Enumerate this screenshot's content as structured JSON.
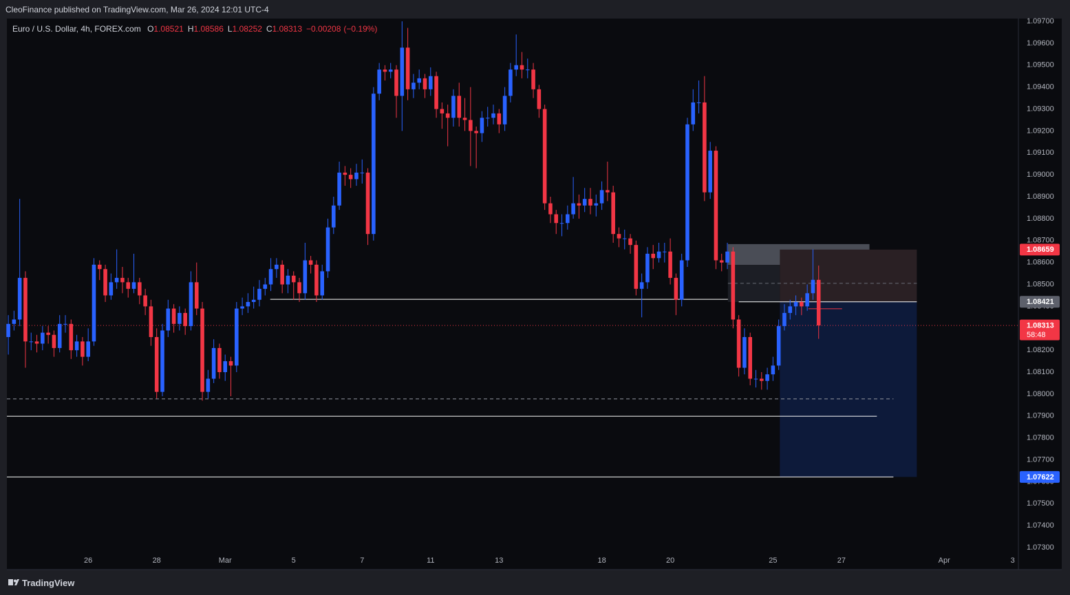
{
  "header": "CleoFinance published on TradingView.com, Mar 26, 2024 12:01 UTC-4",
  "footer": "TradingView",
  "chart_data": {
    "type": "candlestick",
    "title": "Euro / U.S. Dollar, 4h, FOREX.com",
    "ohlc_legend": [
      {
        "label": "O",
        "value": 1.08521
      },
      {
        "label": "H",
        "value": 1.08586
      },
      {
        "label": "L",
        "value": 1.08252
      },
      {
        "label": "C",
        "value": 1.08313
      }
    ],
    "change": {
      "value": -0.00208,
      "label": "−0.00208"
    },
    "change_percent": {
      "value": -0.19,
      "label": "(−0.19%)"
    },
    "legend_color": "#f23645",
    "up_color": "#2962ff",
    "down_color": "#f23645",
    "open": [
      1.0826,
      1.0832,
      1.0834,
      1.0853,
      1.0824,
      1.0824,
      1.0823,
      1.0828,
      1.0827,
      1.0821,
      1.0832,
      1.0832,
      1.082,
      1.0824,
      1.0817,
      1.0824,
      1.0859,
      1.0857,
      1.0845,
      1.0851,
      1.0853,
      1.0851,
      1.0848,
      1.0851,
      1.0845,
      1.084,
      1.0826,
      1.0801,
      1.0829,
      1.0839,
      1.0832,
      1.0837,
      1.0831,
      1.0851,
      1.0839,
      1.0801,
      1.0807,
      1.0821,
      1.081,
      1.0815,
      1.0813,
      1.0839,
      1.084,
      1.0842,
      1.0843,
      1.0848,
      1.085,
      1.0857,
      1.0859,
      1.085,
      1.0854,
      1.0851,
      1.0846,
      1.0861,
      1.0859,
      1.0845,
      1.0856,
      1.0876,
      1.0886,
      1.0901,
      1.09,
      1.0898,
      1.0901,
      1.0901,
      1.0873,
      1.0937,
      1.0948,
      1.0947,
      1.0948,
      1.0936,
      1.0958,
      1.0939,
      1.0942,
      1.0944,
      1.0939,
      1.0945,
      1.093,
      1.0928,
      1.0926,
      1.0936,
      1.0926,
      1.0925,
      1.092,
      1.0919,
      1.0926,
      1.0926,
      1.0928,
      1.0923,
      1.0936,
      1.0948,
      1.095,
      1.0948,
      1.0948,
      1.0939,
      1.093,
      1.0887,
      1.0882,
      1.0878,
      1.0878,
      1.0882,
      1.0887,
      1.0886,
      1.0889,
      1.0886,
      1.0887,
      1.0893,
      1.0892,
      1.0873,
      1.0871,
      1.0871,
      1.0868,
      1.0848,
      1.0851,
      1.0864,
      1.0862,
      1.0865,
      1.0865,
      1.0853,
      1.0843,
      1.0861,
      1.0923,
      1.0933,
      1.0933,
      1.0892,
      1.0911,
      1.0861,
      1.086,
      1.0865,
      1.0834,
      1.0812,
      1.0826,
      1.0807,
      1.0807,
      1.0806,
      1.0809,
      1.0813,
      1.0831,
      1.0837,
      1.084,
      1.0842,
      1.084,
      1.0846,
      1.08521
    ],
    "high": [
      1.0836,
      1.0838,
      1.0889,
      1.0856,
      1.0828,
      1.0827,
      1.0831,
      1.0831,
      1.0829,
      1.0836,
      1.0836,
      1.0834,
      1.0827,
      1.0826,
      1.083,
      1.0862,
      1.0861,
      1.0859,
      1.0855,
      1.0866,
      1.0858,
      1.0853,
      1.0864,
      1.0853,
      1.0848,
      1.0843,
      1.083,
      1.0832,
      1.0843,
      1.0841,
      1.084,
      1.0839,
      1.0856,
      1.086,
      1.0842,
      1.0811,
      1.0825,
      1.0823,
      1.0818,
      1.0817,
      1.0842,
      1.0844,
      1.0846,
      1.0849,
      1.0852,
      1.0853,
      1.0862,
      1.0862,
      1.0861,
      1.0857,
      1.0856,
      1.0853,
      1.0869,
      1.0863,
      1.0861,
      1.0859,
      1.088,
      1.089,
      1.0906,
      1.0904,
      1.0903,
      1.0905,
      1.0907,
      1.0903,
      1.094,
      1.0951,
      1.095,
      1.0951,
      1.095,
      1.097,
      1.0967,
      1.0946,
      1.0948,
      1.0946,
      1.0949,
      1.0947,
      1.0933,
      1.0932,
      1.0939,
      1.0942,
      1.0935,
      1.094,
      1.0922,
      1.0929,
      1.0931,
      1.0932,
      1.093,
      1.094,
      1.0951,
      1.0964,
      1.0956,
      1.0953,
      1.0951,
      1.0941,
      1.0932,
      1.089,
      1.0884,
      1.0882,
      1.0886,
      1.0899,
      1.0891,
      1.0894,
      1.0894,
      1.0891,
      1.0897,
      1.0906,
      1.0895,
      1.0876,
      1.0875,
      1.0873,
      1.087,
      1.0855,
      1.0867,
      1.0868,
      1.0869,
      1.0869,
      1.0871,
      1.0855,
      1.0864,
      1.0926,
      1.0939,
      1.0943,
      1.0945,
      1.0915,
      1.0913,
      1.0864,
      1.0869,
      1.0867,
      1.0836,
      1.083,
      1.0828,
      1.0811,
      1.081,
      1.0812,
      1.0817,
      1.0834,
      1.0841,
      1.0843,
      1.0845,
      1.0844,
      1.085,
      1.0866,
      1.08586
    ],
    "low": [
      1.0818,
      1.0829,
      1.0831,
      1.0812,
      1.082,
      1.0819,
      1.082,
      1.0823,
      1.0817,
      1.0819,
      1.0828,
      1.0816,
      1.0817,
      1.0813,
      1.0815,
      1.0822,
      1.0852,
      1.0842,
      1.0843,
      1.0848,
      1.0846,
      1.0844,
      1.0846,
      1.0841,
      1.0836,
      1.0822,
      1.0798,
      1.0799,
      1.0826,
      1.0828,
      1.0829,
      1.0827,
      1.0829,
      1.0836,
      1.0797,
      1.0798,
      1.0805,
      1.0807,
      1.0806,
      1.0799,
      1.081,
      1.0836,
      1.0837,
      1.0839,
      1.084,
      1.0845,
      1.0847,
      1.0853,
      1.0846,
      1.0846,
      1.0843,
      1.0842,
      1.0843,
      1.0855,
      1.0842,
      1.0843,
      1.0853,
      1.0873,
      1.0884,
      1.0895,
      1.0894,
      1.0895,
      1.0896,
      1.0868,
      1.087,
      1.0934,
      1.0943,
      1.0944,
      1.0926,
      1.092,
      1.0934,
      1.0935,
      1.0939,
      1.0935,
      1.0936,
      1.0926,
      1.0921,
      1.0913,
      1.0922,
      1.0922,
      1.092,
      1.0904,
      1.0903,
      1.0915,
      1.0922,
      1.0923,
      1.0919,
      1.092,
      1.0933,
      1.0945,
      1.0944,
      1.0944,
      1.0935,
      1.0926,
      1.0884,
      1.0878,
      1.0873,
      1.0872,
      1.0875,
      1.088,
      1.088,
      1.0883,
      1.0882,
      1.0881,
      1.0884,
      1.0888,
      1.0869,
      1.0867,
      1.0866,
      1.0864,
      1.0845,
      1.0835,
      1.0848,
      1.0857,
      1.086,
      1.086,
      1.085,
      1.0836,
      1.084,
      1.0858,
      1.092,
      1.0928,
      1.0888,
      1.0889,
      1.0857,
      1.0856,
      1.0857,
      1.083,
      1.0808,
      1.0809,
      1.0804,
      1.0803,
      1.0802,
      1.0802,
      1.0806,
      1.0811,
      1.0829,
      1.0834,
      1.0836,
      1.0836,
      1.0838,
      1.0843,
      1.08252
    ],
    "close": [
      1.0832,
      1.0834,
      1.0853,
      1.0824,
      1.0824,
      1.0823,
      1.0828,
      1.0827,
      1.0821,
      1.0832,
      1.0832,
      1.082,
      1.0824,
      1.0817,
      1.0824,
      1.0859,
      1.0857,
      1.0845,
      1.0851,
      1.0853,
      1.0851,
      1.0848,
      1.0851,
      1.0845,
      1.084,
      1.0826,
      1.0801,
      1.0829,
      1.0839,
      1.0832,
      1.0837,
      1.0831,
      1.0851,
      1.0839,
      1.0801,
      1.0807,
      1.0821,
      1.081,
      1.0815,
      1.0813,
      1.0839,
      1.084,
      1.0842,
      1.0843,
      1.0848,
      1.085,
      1.0857,
      1.0859,
      1.085,
      1.0854,
      1.0851,
      1.0846,
      1.0861,
      1.0859,
      1.0845,
      1.0856,
      1.0876,
      1.0886,
      1.0901,
      1.09,
      1.0898,
      1.0901,
      1.0901,
      1.0873,
      1.0937,
      1.0948,
      1.0947,
      1.0948,
      1.0936,
      1.0958,
      1.0939,
      1.0942,
      1.0944,
      1.0939,
      1.0945,
      1.093,
      1.0928,
      1.0926,
      1.0936,
      1.0926,
      1.0925,
      1.092,
      1.0919,
      1.0926,
      1.0926,
      1.0928,
      1.0923,
      1.0936,
      1.0948,
      1.095,
      1.0948,
      1.0948,
      1.0939,
      1.093,
      1.0887,
      1.0882,
      1.0878,
      1.0878,
      1.0882,
      1.0887,
      1.0886,
      1.0889,
      1.0886,
      1.0887,
      1.0893,
      1.0892,
      1.0873,
      1.0871,
      1.0871,
      1.0868,
      1.0848,
      1.0851,
      1.0864,
      1.0862,
      1.0865,
      1.0865,
      1.0853,
      1.0843,
      1.0861,
      1.0923,
      1.0933,
      1.0933,
      1.0892,
      1.0911,
      1.0861,
      1.086,
      1.0865,
      1.0834,
      1.0812,
      1.0826,
      1.0807,
      1.0807,
      1.0806,
      1.0809,
      1.0813,
      1.0831,
      1.0837,
      1.084,
      1.0842,
      1.084,
      1.0846,
      1.08521,
      1.08313
    ],
    "xlim": [
      -0.25,
      177
    ],
    "xticks": [
      {
        "value": 14,
        "label": "26"
      },
      {
        "value": 26,
        "label": "28"
      },
      {
        "value": 38,
        "label": "Mar"
      },
      {
        "value": 50,
        "label": "5"
      },
      {
        "value": 62,
        "label": "7"
      },
      {
        "value": 74,
        "label": "11"
      },
      {
        "value": 86,
        "label": "13"
      },
      {
        "value": 104,
        "label": "18"
      },
      {
        "value": 116,
        "label": "20"
      },
      {
        "value": 134,
        "label": "25"
      },
      {
        "value": 146,
        "label": "27"
      },
      {
        "value": 164,
        "label": "Apr"
      },
      {
        "value": 176,
        "label": "3"
      }
    ],
    "ylim": [
      1.072,
      1.0971
    ],
    "yticks": [
      {
        "value": 1.073,
        "label": "1.07300"
      },
      {
        "value": 1.074,
        "label": "1.07400"
      },
      {
        "value": 1.075,
        "label": "1.07500"
      },
      {
        "value": 1.076,
        "label": "1.07600"
      },
      {
        "value": 1.077,
        "label": "1.07700"
      },
      {
        "value": 1.078,
        "label": "1.07800"
      },
      {
        "value": 1.079,
        "label": "1.07900"
      },
      {
        "value": 1.08,
        "label": "1.08000"
      },
      {
        "value": 1.081,
        "label": "1.08100"
      },
      {
        "value": 1.082,
        "label": "1.08200"
      },
      {
        "value": 1.083,
        "label": "1.08300"
      },
      {
        "value": 1.084,
        "label": "1.08400"
      },
      {
        "value": 1.085,
        "label": "1.08500"
      },
      {
        "value": 1.086,
        "label": "1.08600"
      },
      {
        "value": 1.087,
        "label": "1.08700"
      },
      {
        "value": 1.088,
        "label": "1.08800"
      },
      {
        "value": 1.089,
        "label": "1.08900"
      },
      {
        "value": 1.09,
        "label": "1.09000"
      },
      {
        "value": 1.091,
        "label": "1.09100"
      },
      {
        "value": 1.092,
        "label": "1.09200"
      },
      {
        "value": 1.093,
        "label": "1.09300"
      },
      {
        "value": 1.094,
        "label": "1.09400"
      },
      {
        "value": 1.095,
        "label": "1.09500"
      },
      {
        "value": 1.096,
        "label": "1.09600"
      },
      {
        "value": 1.097,
        "label": "1.09700"
      }
    ],
    "grid": false,
    "zones": [
      {
        "from": 126.1,
        "to": 150.9,
        "top": 1.08684,
        "bottom": 1.08589,
        "color": "#4a4d56"
      },
      {
        "from": 126.1,
        "to": 135.2,
        "top": 1.08589,
        "bottom": 1.0842,
        "color": "#1c1e25"
      },
      {
        "from": 135.2,
        "to": 159.2,
        "top": 1.08659,
        "bottom": 1.08421,
        "color": "#2a2024"
      },
      {
        "from": 135.2,
        "to": 159.2,
        "top": 1.08421,
        "bottom": 1.07622,
        "color": "#0d1a3a"
      }
    ],
    "levels": [
      {
        "value": 1.08432,
        "from": 45.9,
        "to": 126.1,
        "color": "#ffffff",
        "style": "solid"
      },
      {
        "value": 1.08421,
        "from": 128.0,
        "to": 159.2,
        "color": "#ffffff",
        "style": "solid"
      },
      {
        "value": 1.08505,
        "from": 126.1,
        "to": 159.2,
        "color": "#6a6d78",
        "style": "dashed"
      },
      {
        "value": 1.07978,
        "from": -0.25,
        "to": 155.1,
        "color": "#9598a1",
        "style": "dashed"
      },
      {
        "value": 1.07899,
        "from": -0.25,
        "to": 152.2,
        "color": "#ffffff",
        "style": "solid"
      },
      {
        "value": 1.07622,
        "from": -0.25,
        "to": 155.1,
        "color": "#ffffff",
        "style": "solid"
      },
      {
        "value": 1.08389,
        "from": 140.2,
        "to": 146.1,
        "color": "#f23645",
        "style": "solid"
      },
      {
        "value": 1.08313,
        "from": -0.25,
        "to": 177,
        "color": "#f23645",
        "style": "dotted"
      }
    ],
    "price_tags": [
      {
        "value": 1.08659,
        "color": "#f23645"
      },
      {
        "value": 1.08421,
        "color": "#5d606b"
      },
      {
        "value": 1.08313,
        "color": "#f23645",
        "countdown": "58:48"
      },
      {
        "value": 1.07622,
        "color": "#2962ff"
      }
    ]
  }
}
